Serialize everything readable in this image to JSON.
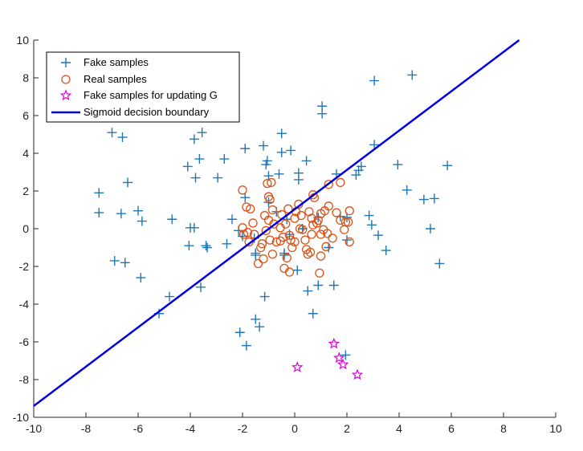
{
  "chart_data": {
    "type": "scatter",
    "title": "",
    "xlabel": "",
    "ylabel": "",
    "xlim": [
      -10,
      10
    ],
    "ylim": [
      -10,
      10
    ],
    "xticks": [
      -10,
      -8,
      -6,
      -4,
      -2,
      0,
      2,
      4,
      6,
      8,
      10
    ],
    "yticks": [
      -10,
      -8,
      -6,
      -4,
      -2,
      0,
      2,
      4,
      6,
      8,
      10
    ],
    "grid": false,
    "legend_position": "top-left",
    "series": [
      {
        "name": "Fake samples",
        "marker": "plus",
        "color": "#1f77b4",
        "points": [
          [
            -7.5,
            1.9
          ],
          [
            -7.5,
            0.85
          ],
          [
            -7.0,
            5.1
          ],
          [
            -6.6,
            4.85
          ],
          [
            -6.4,
            2.45
          ],
          [
            -6.65,
            0.8
          ],
          [
            -6.0,
            0.95
          ],
          [
            -5.85,
            0.4
          ],
          [
            -6.9,
            -1.7
          ],
          [
            -6.5,
            -1.8
          ],
          [
            -5.9,
            -2.6
          ],
          [
            -4.7,
            0.5
          ],
          [
            -4.0,
            0.05
          ],
          [
            -3.85,
            0.05
          ],
          [
            -4.05,
            -0.9
          ],
          [
            -3.4,
            -0.9
          ],
          [
            -3.35,
            -1.0
          ],
          [
            -3.6,
            -3.1
          ],
          [
            -4.8,
            -3.6
          ],
          [
            -5.2,
            -4.5
          ],
          [
            -4.1,
            3.3
          ],
          [
            -3.85,
            4.75
          ],
          [
            -3.55,
            5.1
          ],
          [
            -3.65,
            3.7
          ],
          [
            -3.8,
            2.7
          ],
          [
            -2.95,
            2.7
          ],
          [
            -2.7,
            3.7
          ],
          [
            -2.4,
            0.5
          ],
          [
            -2.15,
            -0.1
          ],
          [
            -2.6,
            -0.8
          ],
          [
            -1.9,
            4.25
          ],
          [
            -1.2,
            4.4
          ],
          [
            -1.1,
            3.4
          ],
          [
            -1.05,
            3.6
          ],
          [
            -1.0,
            2.8
          ],
          [
            -0.6,
            2.9
          ],
          [
            -0.5,
            5.05
          ],
          [
            -0.5,
            4.05
          ],
          [
            -0.15,
            4.15
          ],
          [
            0.15,
            2.95
          ],
          [
            0.45,
            3.6
          ],
          [
            0.15,
            2.6
          ],
          [
            -0.3,
            0.5
          ],
          [
            -1.9,
            1.65
          ],
          [
            -2.0,
            -0.4
          ],
          [
            -1.55,
            -0.5
          ],
          [
            -1.5,
            -1.3
          ],
          [
            -1.5,
            -1.4
          ],
          [
            -2.1,
            -5.5
          ],
          [
            -1.85,
            -6.2
          ],
          [
            -1.5,
            -4.8
          ],
          [
            -1.35,
            -5.2
          ],
          [
            -1.15,
            -3.6
          ],
          [
            -0.4,
            -1.3
          ],
          [
            -0.4,
            -1.4
          ],
          [
            0.1,
            -2.2
          ],
          [
            0.5,
            -3.3
          ],
          [
            0.7,
            -4.5
          ],
          [
            0.9,
            -3.0
          ],
          [
            1.5,
            -3.0
          ],
          [
            1.05,
            6.5
          ],
          [
            1.05,
            6.1
          ],
          [
            1.6,
            2.9
          ],
          [
            1.75,
            0.65
          ],
          [
            2.0,
            0.6
          ],
          [
            2.0,
            -0.6
          ],
          [
            2.55,
            3.3
          ],
          [
            2.45,
            3.1
          ],
          [
            2.35,
            2.85
          ],
          [
            2.85,
            0.7
          ],
          [
            2.95,
            0.2
          ],
          [
            3.2,
            -0.35
          ],
          [
            3.5,
            -1.15
          ],
          [
            3.05,
            4.45
          ],
          [
            3.05,
            7.85
          ],
          [
            4.5,
            8.15
          ],
          [
            3.95,
            3.4
          ],
          [
            4.3,
            2.05
          ],
          [
            4.95,
            1.55
          ],
          [
            5.35,
            1.6
          ],
          [
            5.85,
            3.35
          ],
          [
            5.2,
            0.0
          ],
          [
            5.55,
            -1.85
          ],
          [
            1.95,
            -6.7
          ],
          [
            -1.0,
            1.4
          ],
          [
            -0.7,
            0.9
          ],
          [
            0.9,
            0.6
          ],
          [
            -0.2,
            -0.3
          ],
          [
            1.3,
            -1.0
          ],
          [
            0.3,
            0.0
          ]
        ]
      },
      {
        "name": "Real samples",
        "marker": "circle",
        "color": "#d95319",
        "points": [
          [
            -2.0,
            2.05
          ],
          [
            -1.85,
            1.15
          ],
          [
            -1.7,
            1.05
          ],
          [
            -1.6,
            0.3
          ],
          [
            -1.8,
            -0.2
          ],
          [
            -2.0,
            0.05
          ],
          [
            -1.95,
            -0.3
          ],
          [
            -1.55,
            -0.3
          ],
          [
            -1.75,
            -0.7
          ],
          [
            -1.3,
            -1.0
          ],
          [
            -1.4,
            -1.85
          ],
          [
            -1.2,
            -1.6
          ],
          [
            -1.1,
            -0.1
          ],
          [
            -1.0,
            0.45
          ],
          [
            -0.95,
            -0.6
          ],
          [
            -1.15,
            0.7
          ],
          [
            -1.0,
            1.7
          ],
          [
            -0.95,
            1.55
          ],
          [
            -0.9,
            2.45
          ],
          [
            -1.05,
            2.4
          ],
          [
            -0.85,
            1.0
          ],
          [
            -0.8,
            0.25
          ],
          [
            -0.7,
            -0.7
          ],
          [
            -0.55,
            -0.65
          ],
          [
            -0.85,
            -1.35
          ],
          [
            -0.5,
            0.75
          ],
          [
            -0.35,
            0.25
          ],
          [
            -0.25,
            1.05
          ],
          [
            -0.2,
            -0.35
          ],
          [
            -0.15,
            -0.6
          ],
          [
            -0.3,
            -1.55
          ],
          [
            -0.4,
            -2.1
          ],
          [
            -0.2,
            -2.3
          ],
          [
            0.0,
            -0.7
          ],
          [
            0.0,
            0.55
          ],
          [
            0.05,
            0.9
          ],
          [
            0.15,
            1.3
          ],
          [
            0.25,
            0.7
          ],
          [
            0.3,
            -0.05
          ],
          [
            0.4,
            -0.6
          ],
          [
            0.45,
            -1.1
          ],
          [
            0.5,
            -1.35
          ],
          [
            0.6,
            -1.25
          ],
          [
            0.65,
            -0.3
          ],
          [
            0.7,
            0.2
          ],
          [
            0.65,
            0.55
          ],
          [
            0.75,
            1.65
          ],
          [
            0.7,
            1.8
          ],
          [
            0.9,
            0.45
          ],
          [
            1.0,
            0.8
          ],
          [
            1.0,
            -0.3
          ],
          [
            1.1,
            -0.05
          ],
          [
            1.15,
            0.95
          ],
          [
            1.3,
            1.2
          ],
          [
            1.3,
            2.35
          ],
          [
            1.25,
            -0.25
          ],
          [
            1.45,
            -0.5
          ],
          [
            1.2,
            -0.95
          ],
          [
            1.0,
            -1.45
          ],
          [
            0.95,
            -2.35
          ],
          [
            1.75,
            2.45
          ],
          [
            1.6,
            0.85
          ],
          [
            1.75,
            0.45
          ],
          [
            1.95,
            0.35
          ],
          [
            2.05,
            0.35
          ],
          [
            2.1,
            0.95
          ],
          [
            2.1,
            -0.7
          ],
          [
            1.9,
            -0.05
          ],
          [
            -0.55,
            0.05
          ],
          [
            -0.45,
            -0.45
          ],
          [
            0.2,
            0.0
          ],
          [
            -0.1,
            -1.0
          ],
          [
            0.55,
            0.9
          ],
          [
            0.85,
            0.3
          ],
          [
            -1.25,
            -0.8
          ]
        ]
      },
      {
        "name": "Fake samples for updating G",
        "marker": "star",
        "color": "#e000e0",
        "points": [
          [
            0.1,
            -7.35
          ],
          [
            1.5,
            -6.1
          ],
          [
            1.7,
            -6.85
          ],
          [
            1.85,
            -7.2
          ],
          [
            2.4,
            -7.75
          ]
        ]
      }
    ],
    "lines": [
      {
        "name": "Sigmoid decision boundary",
        "color": "#0000e0",
        "x": [
          -10,
          8.6
        ],
        "y": [
          -9.4,
          10
        ]
      }
    ]
  }
}
